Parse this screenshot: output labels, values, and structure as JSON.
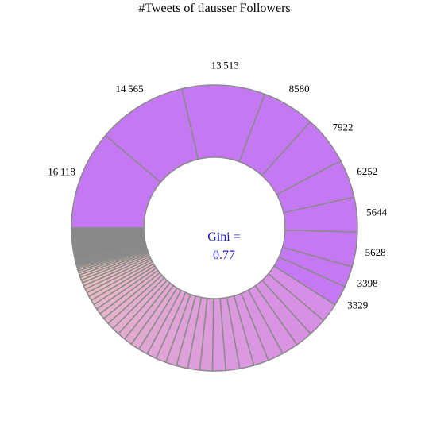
{
  "chart_data": {
    "type": "pie",
    "donut": true,
    "title": "#Tweets of tlausser Followers",
    "center_label": [
      "Gini =",
      "0.77"
    ],
    "start": "left-horizontal",
    "direction": "clockwise",
    "labeled_slices": [
      {
        "label": "16 118",
        "value": 16118
      },
      {
        "label": "14 565",
        "value": 14565
      },
      {
        "label": "13 513",
        "value": 13513
      },
      {
        "label": "8580",
        "value": 8580
      },
      {
        "label": "7922",
        "value": 7922
      },
      {
        "label": "6252",
        "value": 6252
      },
      {
        "label": "5644",
        "value": 5644
      },
      {
        "label": "5628",
        "value": 5628
      },
      {
        "label": "3398",
        "value": 3398
      },
      {
        "label": "3329",
        "value": 3329
      }
    ],
    "unlabeled_slices": [
      3110,
      2950,
      2800,
      2680,
      2560,
      2450,
      2340,
      2240,
      2140,
      2040,
      1950,
      1860,
      1770,
      1690,
      1610,
      1530,
      1450,
      1370,
      1290,
      1210,
      1130,
      1050,
      980,
      910,
      850,
      790,
      735,
      680,
      630,
      580,
      530,
      485,
      440,
      400,
      360,
      325,
      290,
      260,
      230,
      205,
      180,
      155,
      135,
      115,
      95,
      80,
      65,
      50,
      38,
      28,
      18,
      10,
      5
    ],
    "zero_slice_share": 0.035,
    "colors": {
      "labeled": "#c479f2",
      "gradient_start": "#d78ee6",
      "gradient_end": "#f7e2a4",
      "zero": "#888888",
      "stroke": "#8a8a8a"
    }
  }
}
